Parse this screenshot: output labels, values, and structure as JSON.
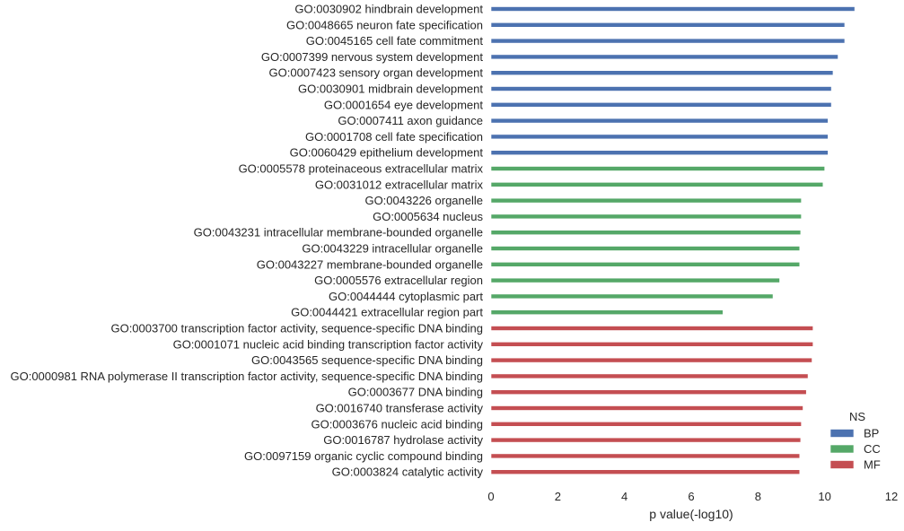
{
  "chart_data": {
    "type": "bar",
    "orientation": "horizontal",
    "xlabel": "p value(-log10)",
    "ylabel": "",
    "xlim": [
      0,
      12
    ],
    "xticks": [
      0,
      2,
      4,
      6,
      8,
      10,
      12
    ],
    "grid": false,
    "legend": {
      "title": "NS",
      "placement": "bottom-right",
      "entries": [
        {
          "name": "BP",
          "color": "#4c72b0"
        },
        {
          "name": "CC",
          "color": "#55a868"
        },
        {
          "name": "MF",
          "color": "#c44e52"
        }
      ]
    },
    "categories": [
      "GO:0030902 hindbrain development",
      "GO:0048665 neuron fate specification",
      "GO:0045165 cell fate commitment",
      "GO:0007399 nervous system development",
      "GO:0007423 sensory organ development",
      "GO:0030901 midbrain development",
      "GO:0001654 eye development",
      "GO:0007411 axon guidance",
      "GO:0001708 cell fate specification",
      "GO:0060429 epithelium development",
      "GO:0005578 proteinaceous extracellular matrix",
      "GO:0031012 extracellular matrix",
      "GO:0043226 organelle",
      "GO:0005634 nucleus",
      "GO:0043231 intracellular membrane-bounded organelle",
      "GO:0043229 intracellular organelle",
      "GO:0043227 membrane-bounded organelle",
      "GO:0005576 extracellular region",
      "GO:0044444 cytoplasmic part",
      "GO:0044421 extracellular region part",
      "GO:0003700 transcription factor activity, sequence-specific DNA binding",
      "GO:0001071 nucleic acid binding transcription factor activity",
      "GO:0043565 sequence-specific DNA binding",
      "GO:0000981 RNA polymerase II transcription factor activity, sequence-specific DNA binding",
      "GO:0003677 DNA binding",
      "GO:0016740 transferase activity",
      "GO:0003676 nucleic acid binding",
      "GO:0016787 hydrolase activity",
      "GO:0097159 organic cyclic compound binding",
      "GO:0003824 catalytic activity"
    ],
    "series": [
      {
        "name": "BP",
        "color": "#4c72b0",
        "values": [
          10.9,
          10.6,
          10.6,
          10.4,
          10.25,
          10.2,
          10.2,
          10.1,
          10.1,
          10.1,
          null,
          null,
          null,
          null,
          null,
          null,
          null,
          null,
          null,
          null,
          null,
          null,
          null,
          null,
          null,
          null,
          null,
          null,
          null,
          null
        ]
      },
      {
        "name": "CC",
        "color": "#55a868",
        "values": [
          null,
          null,
          null,
          null,
          null,
          null,
          null,
          null,
          null,
          null,
          10.0,
          9.95,
          9.3,
          9.3,
          9.28,
          9.25,
          9.25,
          8.65,
          8.45,
          6.95,
          null,
          null,
          null,
          null,
          null,
          null,
          null,
          null,
          null,
          null
        ]
      },
      {
        "name": "MF",
        "color": "#c44e52",
        "values": [
          null,
          null,
          null,
          null,
          null,
          null,
          null,
          null,
          null,
          null,
          null,
          null,
          null,
          null,
          null,
          null,
          null,
          null,
          null,
          null,
          9.65,
          9.65,
          9.62,
          9.5,
          9.45,
          9.35,
          9.3,
          9.28,
          9.25,
          9.25
        ]
      }
    ]
  }
}
